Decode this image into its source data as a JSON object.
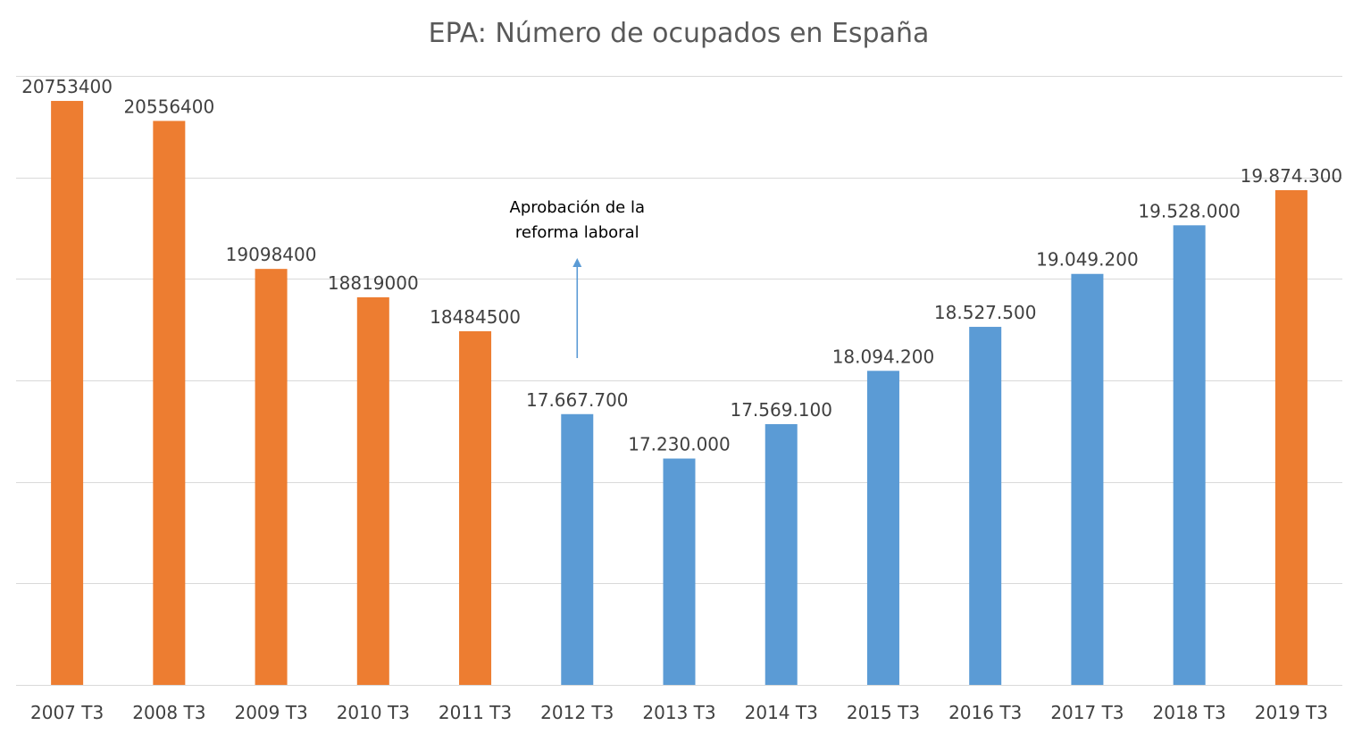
{
  "colors": {
    "orange": "#ED7D31",
    "blue": "#5B9BD5",
    "arrow": "#5B9BD5"
  },
  "chart_data": {
    "type": "bar",
    "title": "EPA: Número de ocupados en España",
    "xlabel": "",
    "ylabel": "",
    "ylim": [
      15000000,
      21000000
    ],
    "grid": true,
    "legend": "none",
    "categories": [
      "2007 T3",
      "2008 T3",
      "2009 T3",
      "2010 T3",
      "2011 T3",
      "2012 T3",
      "2013 T3",
      "2014 T3",
      "2015 T3",
      "2016 T3",
      "2017 T3",
      "2018 T3",
      "2019 T3"
    ],
    "values": [
      20753400,
      20556400,
      19098400,
      18819000,
      18484500,
      17667700,
      17230000,
      17569100,
      18094200,
      18527500,
      19049200,
      19528000,
      19874300
    ],
    "data_labels": [
      "20753400",
      "20556400",
      "19098400",
      "18819000",
      "18484500",
      "17.667.700",
      "17.230.000",
      "17.569.100",
      "18.094.200",
      "18.527.500",
      "19.049.200",
      "19.528.000",
      "19.874.300"
    ],
    "bar_colors": [
      "orange",
      "orange",
      "orange",
      "orange",
      "orange",
      "blue",
      "blue",
      "blue",
      "blue",
      "blue",
      "blue",
      "blue",
      "orange"
    ],
    "annotation": {
      "lines": [
        "Aprobación de la",
        "reforma laboral"
      ],
      "category": "2012 T3"
    }
  }
}
